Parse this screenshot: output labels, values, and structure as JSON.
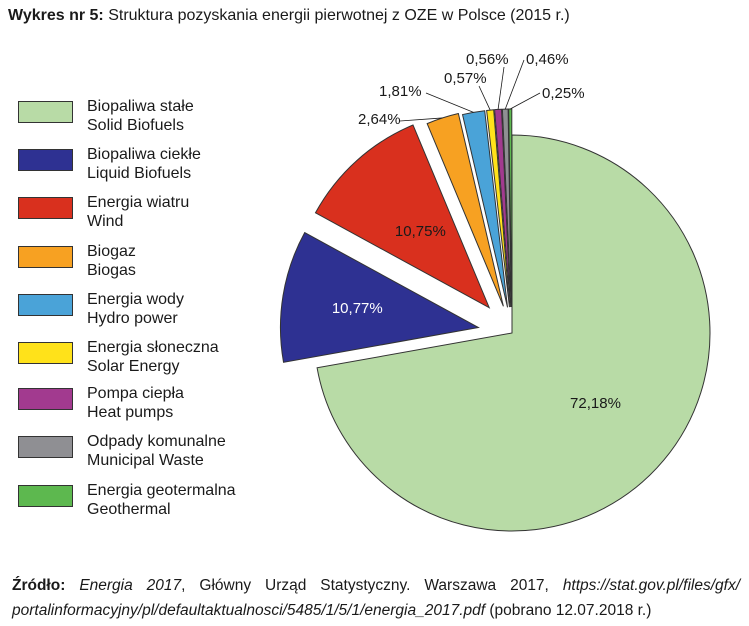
{
  "title": {
    "prefix": "Wykres nr 5:",
    "text": "Struktura pozyskania energii pierwotnej z OZE w Polsce (2015 r.)"
  },
  "chart_data": {
    "type": "pie",
    "slices": [
      {
        "pl": "Biopaliwa stałe",
        "en": "Solid Biofuels",
        "value": 72.18,
        "label": "72,18%",
        "color": "#b8dba6"
      },
      {
        "pl": "Biopaliwa ciekłe",
        "en": "Liquid Biofuels",
        "value": 10.77,
        "label": "10,77%",
        "color": "#2e3192"
      },
      {
        "pl": "Energia wiatru",
        "en": "Wind",
        "value": 10.75,
        "label": "10,75%",
        "color": "#d9301e"
      },
      {
        "pl": "Biogaz",
        "en": "Biogas",
        "value": 2.64,
        "label": "2,64%",
        "color": "#f7a122"
      },
      {
        "pl": "Energia wody",
        "en": "Hydro power",
        "value": 1.81,
        "label": "1,81%",
        "color": "#4aa3d8"
      },
      {
        "pl": "Energia słoneczna",
        "en": "Solar Energy",
        "value": 0.57,
        "label": "0,57%",
        "color": "#ffe21a"
      },
      {
        "pl": "Pompa ciepła",
        "en": "Heat pumps",
        "value": 0.56,
        "label": "0,56%",
        "color": "#a23a8f"
      },
      {
        "pl": "Odpady komunalne",
        "en": "Municipal Waste",
        "value": 0.46,
        "label": "0,46%",
        "color": "#8f8f93"
      },
      {
        "pl": "Energia geotermalna",
        "en": "Geothermal",
        "value": 0.25,
        "label": "0,25%",
        "color": "#5db84f"
      }
    ],
    "exploded": true,
    "legend_position": "left"
  },
  "source": {
    "label": "Źródło:",
    "work": "Energia 2017",
    "publisher": ", Główny Urząd Statystyczny. Warszawa 2017,",
    "url_line1": "https://stat.gov.pl/files/gfx/",
    "url_line2": "portalinformacyjny/pl/defaultaktualnosci/5485/1/5/1/energia_2017.pdf",
    "retrieved": "(pobrano 12.07.2018 r.)"
  }
}
